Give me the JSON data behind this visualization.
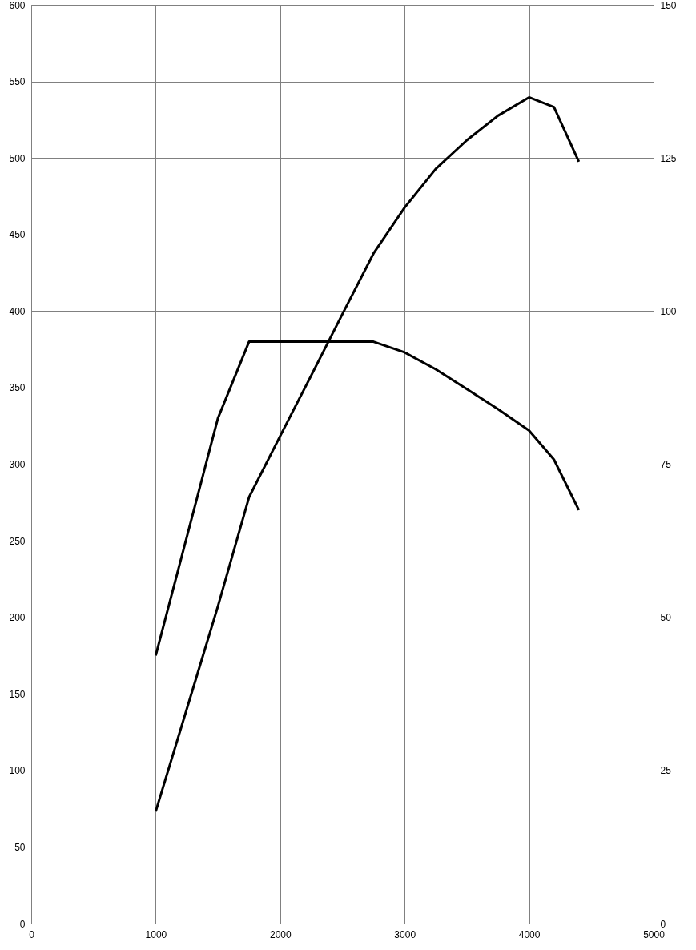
{
  "chart_data": {
    "type": "line",
    "x": [
      1000,
      1500,
      1750,
      2000,
      2250,
      2500,
      2750,
      3000,
      3250,
      3500,
      3750,
      4000,
      4200,
      4400
    ],
    "series": [
      {
        "color": "#000000",
        "values": [
          175,
          330,
          380,
          380,
          380,
          380,
          380,
          373,
          362,
          349,
          336,
          322,
          303,
          270
        ]
      },
      {
        "color": "#000000",
        "axis": "y2",
        "values": [
          18.3,
          51.8,
          69.6,
          79.6,
          89.5,
          99.5,
          109.4,
          116.9,
          123.2,
          127.9,
          131.9,
          134.9,
          133.3,
          124.4
        ]
      }
    ],
    "xlim": [
      0,
      5000
    ],
    "xticks": [
      0,
      1000,
      2000,
      3000,
      4000,
      5000
    ],
    "ylim": [
      0,
      600
    ],
    "yticks": [
      0,
      50,
      100,
      150,
      200,
      250,
      300,
      350,
      400,
      450,
      500,
      550,
      600
    ],
    "y2lim": [
      0,
      150
    ],
    "y2ticks": [
      0,
      25,
      50,
      75,
      100,
      125,
      150
    ],
    "grid": true
  }
}
